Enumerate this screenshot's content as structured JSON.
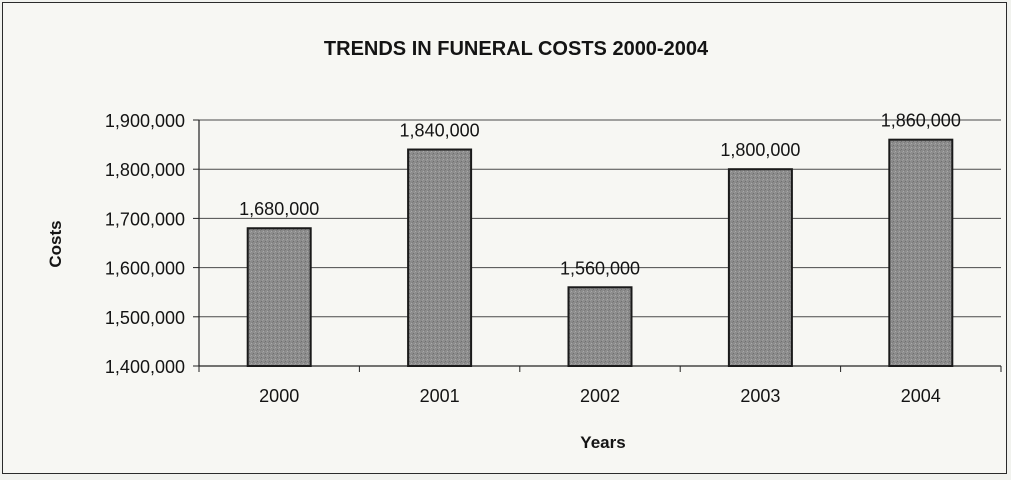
{
  "chart_data": {
    "type": "bar",
    "title": "TRENDS IN FUNERAL COSTS 2000-2004",
    "xlabel": "Years",
    "ylabel": "Costs",
    "categories": [
      "2000",
      "2001",
      "2002",
      "2003",
      "2004"
    ],
    "values": [
      1680000,
      1840000,
      1560000,
      1800000,
      1860000
    ],
    "value_labels": [
      "1,680,000",
      "1,840,000",
      "1,560,000",
      "1,800,000",
      "1,860,000"
    ],
    "ylim": [
      1400000,
      1900000
    ],
    "yticks": [
      1400000,
      1500000,
      1600000,
      1700000,
      1800000,
      1900000
    ],
    "ytick_labels": [
      "1,400,000",
      "1,500,000",
      "1,600,000",
      "1,700,000",
      "1,800,000",
      "1,900,000"
    ],
    "grid": true,
    "legend": "none",
    "colors": {
      "bar_fill": "#8a8a8a",
      "bar_stroke": "#1a1a1a",
      "grid": "#4a4a4a",
      "background": "#f7f7f3"
    }
  }
}
